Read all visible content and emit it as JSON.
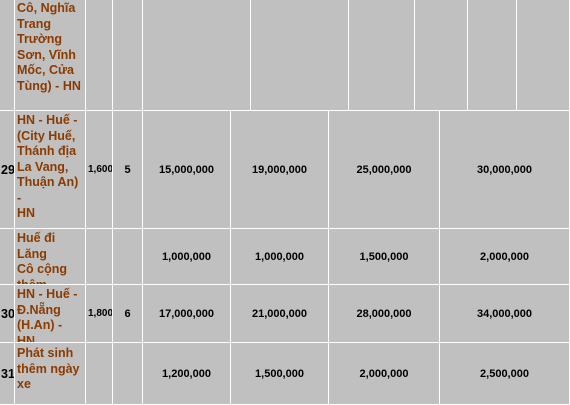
{
  "rows": [
    {
      "stt": "",
      "route": "Cô, Nghĩa\nTrang\nTrường\nSơn, Vĩnh\nMốc, Cửa\nTùng) - HN",
      "km": "",
      "days": "",
      "p1": "",
      "p2": "",
      "p3": "",
      "p4": ""
    },
    {
      "stt": "29",
      "route": "HN - Huế -\n(City Huế,\nThánh địa\nLa Vang,\nThuận An) -\nHN",
      "km": "1,600",
      "days": "5",
      "p1": "15,000,000",
      "p2": "19,000,000",
      "p3": "25,000,000",
      "p4": "30,000,000"
    },
    {
      "stt": "",
      "route": "Huế đi Lăng\nCô cộng\nthêm",
      "km": "",
      "days": "",
      "p1": "1,000,000",
      "p2": "1,000,000",
      "p3": "1,500,000",
      "p4": "2,000,000"
    },
    {
      "stt": "30",
      "route": "HN - Huế -\nĐ.Nẵng\n(H.An) - HN",
      "km": "1,800",
      "days": "6",
      "p1": "17,000,000",
      "p2": "21,000,000",
      "p3": "28,000,000",
      "p4": "34,000,000"
    },
    {
      "stt": "31",
      "route": "Phát sinh\nthêm ngày\nxe",
      "km": "",
      "days": "",
      "p1": "1,200,000",
      "p2": "1,500,000",
      "p3": "2,000,000",
      "p4": "2,500,000"
    }
  ]
}
